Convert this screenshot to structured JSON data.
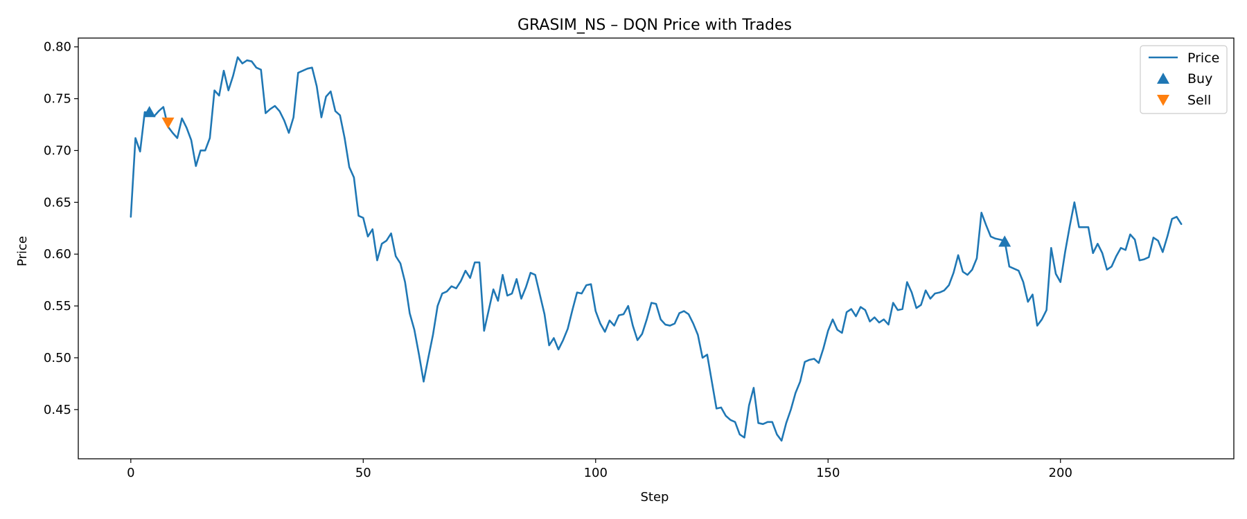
{
  "chart_data": {
    "type": "line",
    "title": "GRASIM_NS – DQN Price with Trades",
    "xlabel": "Step",
    "ylabel": "Price",
    "xlim": [
      -11.3,
      237.3
    ],
    "ylim": [
      0.4025,
      0.8085
    ],
    "xticks": [
      0,
      50,
      100,
      150,
      200
    ],
    "yticks": [
      0.45,
      0.5,
      0.55,
      0.6,
      0.65,
      0.7,
      0.75,
      0.8
    ],
    "ytick_labels": [
      "0.45",
      "0.50",
      "0.55",
      "0.60",
      "0.65",
      "0.70",
      "0.75",
      "0.80"
    ],
    "grid": false,
    "legend_position": "top-right",
    "series": [
      {
        "name": "Price",
        "kind": "line",
        "color": "#1f77b4",
        "x": [
          0,
          1,
          2,
          3,
          4,
          5,
          6,
          7,
          8,
          9,
          10,
          11,
          12,
          13,
          14,
          15,
          16,
          17,
          18,
          19,
          20,
          21,
          22,
          23,
          24,
          25,
          26,
          27,
          28,
          29,
          30,
          31,
          32,
          33,
          34,
          35,
          36,
          37,
          38,
          39,
          40,
          41,
          42,
          43,
          44,
          45,
          46,
          47,
          48,
          49,
          50,
          51,
          52,
          53,
          54,
          55,
          56,
          57,
          58,
          59,
          60,
          61,
          62,
          63,
          64,
          65,
          66,
          67,
          68,
          69,
          70,
          71,
          72,
          73,
          74,
          75,
          76,
          77,
          78,
          79,
          80,
          81,
          82,
          83,
          84,
          85,
          86,
          87,
          88,
          89,
          90,
          91,
          92,
          93,
          94,
          95,
          96,
          97,
          98,
          99,
          100,
          101,
          102,
          103,
          104,
          105,
          106,
          107,
          108,
          109,
          110,
          111,
          112,
          113,
          114,
          115,
          116,
          117,
          118,
          119,
          120,
          121,
          122,
          123,
          124,
          125,
          126,
          127,
          128,
          129,
          130,
          131,
          132,
          133,
          134,
          135,
          136,
          137,
          138,
          139,
          140,
          141,
          142,
          143,
          144,
          145,
          146,
          147,
          148,
          149,
          150,
          151,
          152,
          153,
          154,
          155,
          156,
          157,
          158,
          159,
          160,
          161,
          162,
          163,
          164,
          165,
          166,
          167,
          168,
          169,
          170,
          171,
          172,
          173,
          174,
          175,
          176,
          177,
          178,
          179,
          180,
          181,
          182,
          183,
          184,
          185,
          186,
          187,
          188,
          189,
          190,
          191,
          192,
          193,
          194,
          195,
          196,
          197,
          198,
          199,
          200,
          201,
          202,
          203,
          204,
          205,
          206,
          207,
          208,
          209,
          210,
          211,
          212,
          213,
          214,
          215,
          216,
          217,
          218,
          219,
          220,
          221,
          222,
          223,
          224,
          225,
          226
        ],
        "y": [
          0.636,
          0.712,
          0.699,
          0.737,
          0.736,
          0.733,
          0.738,
          0.742,
          0.723,
          0.717,
          0.712,
          0.731,
          0.722,
          0.71,
          0.685,
          0.7,
          0.7,
          0.712,
          0.758,
          0.753,
          0.777,
          0.758,
          0.772,
          0.79,
          0.784,
          0.787,
          0.786,
          0.78,
          0.778,
          0.736,
          0.74,
          0.743,
          0.738,
          0.729,
          0.717,
          0.732,
          0.775,
          0.777,
          0.779,
          0.78,
          0.762,
          0.732,
          0.752,
          0.757,
          0.738,
          0.734,
          0.712,
          0.684,
          0.674,
          0.637,
          0.635,
          0.617,
          0.624,
          0.594,
          0.61,
          0.613,
          0.62,
          0.598,
          0.591,
          0.573,
          0.543,
          0.527,
          0.503,
          0.477,
          0.5,
          0.522,
          0.55,
          0.562,
          0.564,
          0.569,
          0.567,
          0.574,
          0.584,
          0.577,
          0.592,
          0.592,
          0.526,
          0.546,
          0.566,
          0.555,
          0.58,
          0.56,
          0.562,
          0.576,
          0.557,
          0.568,
          0.582,
          0.58,
          0.561,
          0.542,
          0.512,
          0.519,
          0.508,
          0.517,
          0.528,
          0.546,
          0.563,
          0.562,
          0.57,
          0.571,
          0.545,
          0.533,
          0.525,
          0.536,
          0.531,
          0.541,
          0.542,
          0.55,
          0.531,
          0.517,
          0.523,
          0.537,
          0.553,
          0.552,
          0.537,
          0.532,
          0.531,
          0.533,
          0.543,
          0.545,
          0.542,
          0.533,
          0.522,
          0.5,
          0.503,
          0.477,
          0.451,
          0.452,
          0.444,
          0.44,
          0.438,
          0.426,
          0.423,
          0.454,
          0.471,
          0.437,
          0.436,
          0.438,
          0.438,
          0.426,
          0.42,
          0.437,
          0.45,
          0.466,
          0.477,
          0.496,
          0.498,
          0.499,
          0.495,
          0.509,
          0.526,
          0.537,
          0.527,
          0.524,
          0.544,
          0.547,
          0.54,
          0.549,
          0.546,
          0.535,
          0.539,
          0.534,
          0.537,
          0.532,
          0.553,
          0.546,
          0.547,
          0.573,
          0.563,
          0.548,
          0.551,
          0.565,
          0.557,
          0.562,
          0.563,
          0.565,
          0.57,
          0.582,
          0.599,
          0.583,
          0.58,
          0.585,
          0.596,
          0.64,
          0.628,
          0.617,
          0.615,
          0.614,
          0.613,
          0.588,
          0.586,
          0.584,
          0.573,
          0.554,
          0.561,
          0.531,
          0.537,
          0.546,
          0.606,
          0.581,
          0.573,
          0.602,
          0.627,
          0.65,
          0.626,
          0.626,
          0.626,
          0.601,
          0.61,
          0.601,
          0.585,
          0.588,
          0.598,
          0.606,
          0.604,
          0.619,
          0.614,
          0.594,
          0.595,
          0.597,
          0.616,
          0.613,
          0.602,
          0.617,
          0.634,
          0.636,
          0.629
        ]
      },
      {
        "name": "Buy",
        "kind": "scatter",
        "marker": "triangle-up",
        "color": "#1f77b4",
        "points": [
          {
            "x": 4,
            "y": 0.737
          },
          {
            "x": 188,
            "y": 0.612
          }
        ]
      },
      {
        "name": "Sell",
        "kind": "scatter",
        "marker": "triangle-down",
        "color": "#ff7f0e",
        "points": [
          {
            "x": 8,
            "y": 0.727
          }
        ]
      }
    ]
  }
}
